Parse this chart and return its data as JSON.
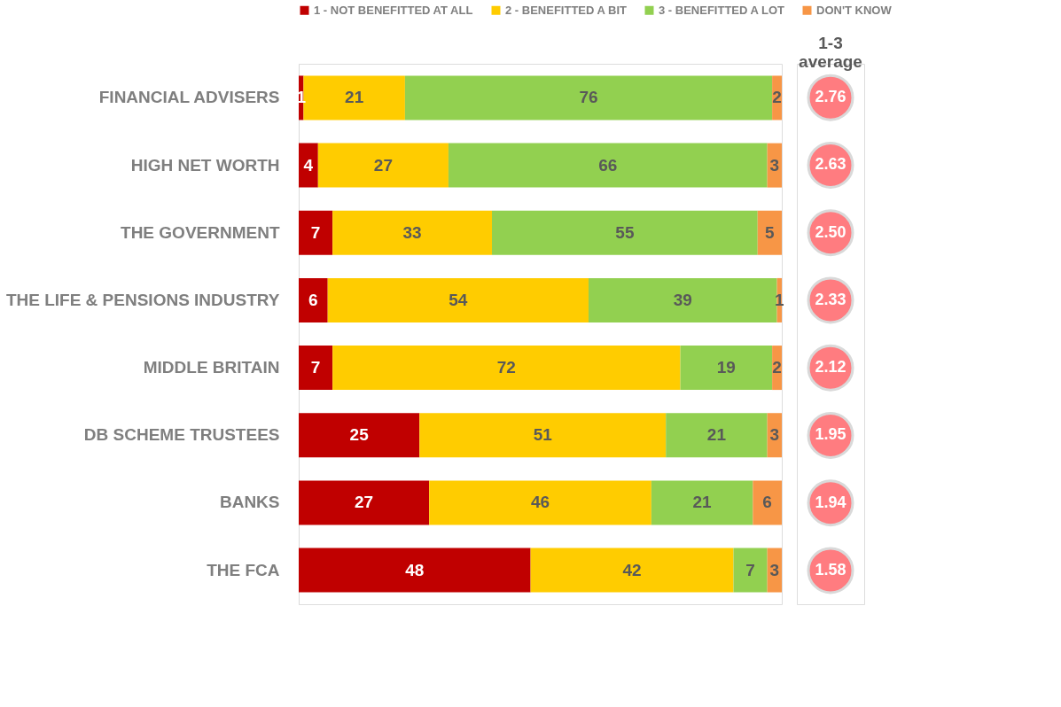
{
  "chart_data": {
    "type": "bar",
    "orientation": "horizontal",
    "stacked": true,
    "categories": [
      "FINANCIAL ADVISERS",
      "HIGH NET WORTH",
      "THE GOVERNMENT",
      "THE LIFE & PENSIONS INDUSTRY",
      "MIDDLE BRITAIN",
      "DB SCHEME TRUSTEES",
      "BANKS",
      "THE FCA"
    ],
    "series": [
      {
        "name": "1 - NOT BENEFITTED AT ALL",
        "color": "#c00000",
        "values": [
          1,
          4,
          7,
          6,
          7,
          25,
          27,
          48
        ]
      },
      {
        "name": "2 - BENEFITTED A BIT",
        "color": "#ffcc00",
        "values": [
          21,
          27,
          33,
          54,
          72,
          51,
          46,
          42
        ]
      },
      {
        "name": "3 - BENEFITTED A LOT",
        "color": "#92d050",
        "values": [
          76,
          66,
          55,
          39,
          19,
          21,
          21,
          7
        ]
      },
      {
        "name": "DON'T KNOW",
        "color": "#f79646",
        "values": [
          2,
          3,
          5,
          1,
          2,
          3,
          6,
          3
        ]
      }
    ],
    "xlim": [
      0,
      100
    ],
    "tick_labels": "y",
    "data_labels": true,
    "legend": "top",
    "grid": false,
    "annotations": [
      "1-3 average",
      "2.76",
      "2.63",
      "2.50",
      "2.33",
      "2.12",
      "1.95",
      "1.94",
      "1.58"
    ]
  }
}
